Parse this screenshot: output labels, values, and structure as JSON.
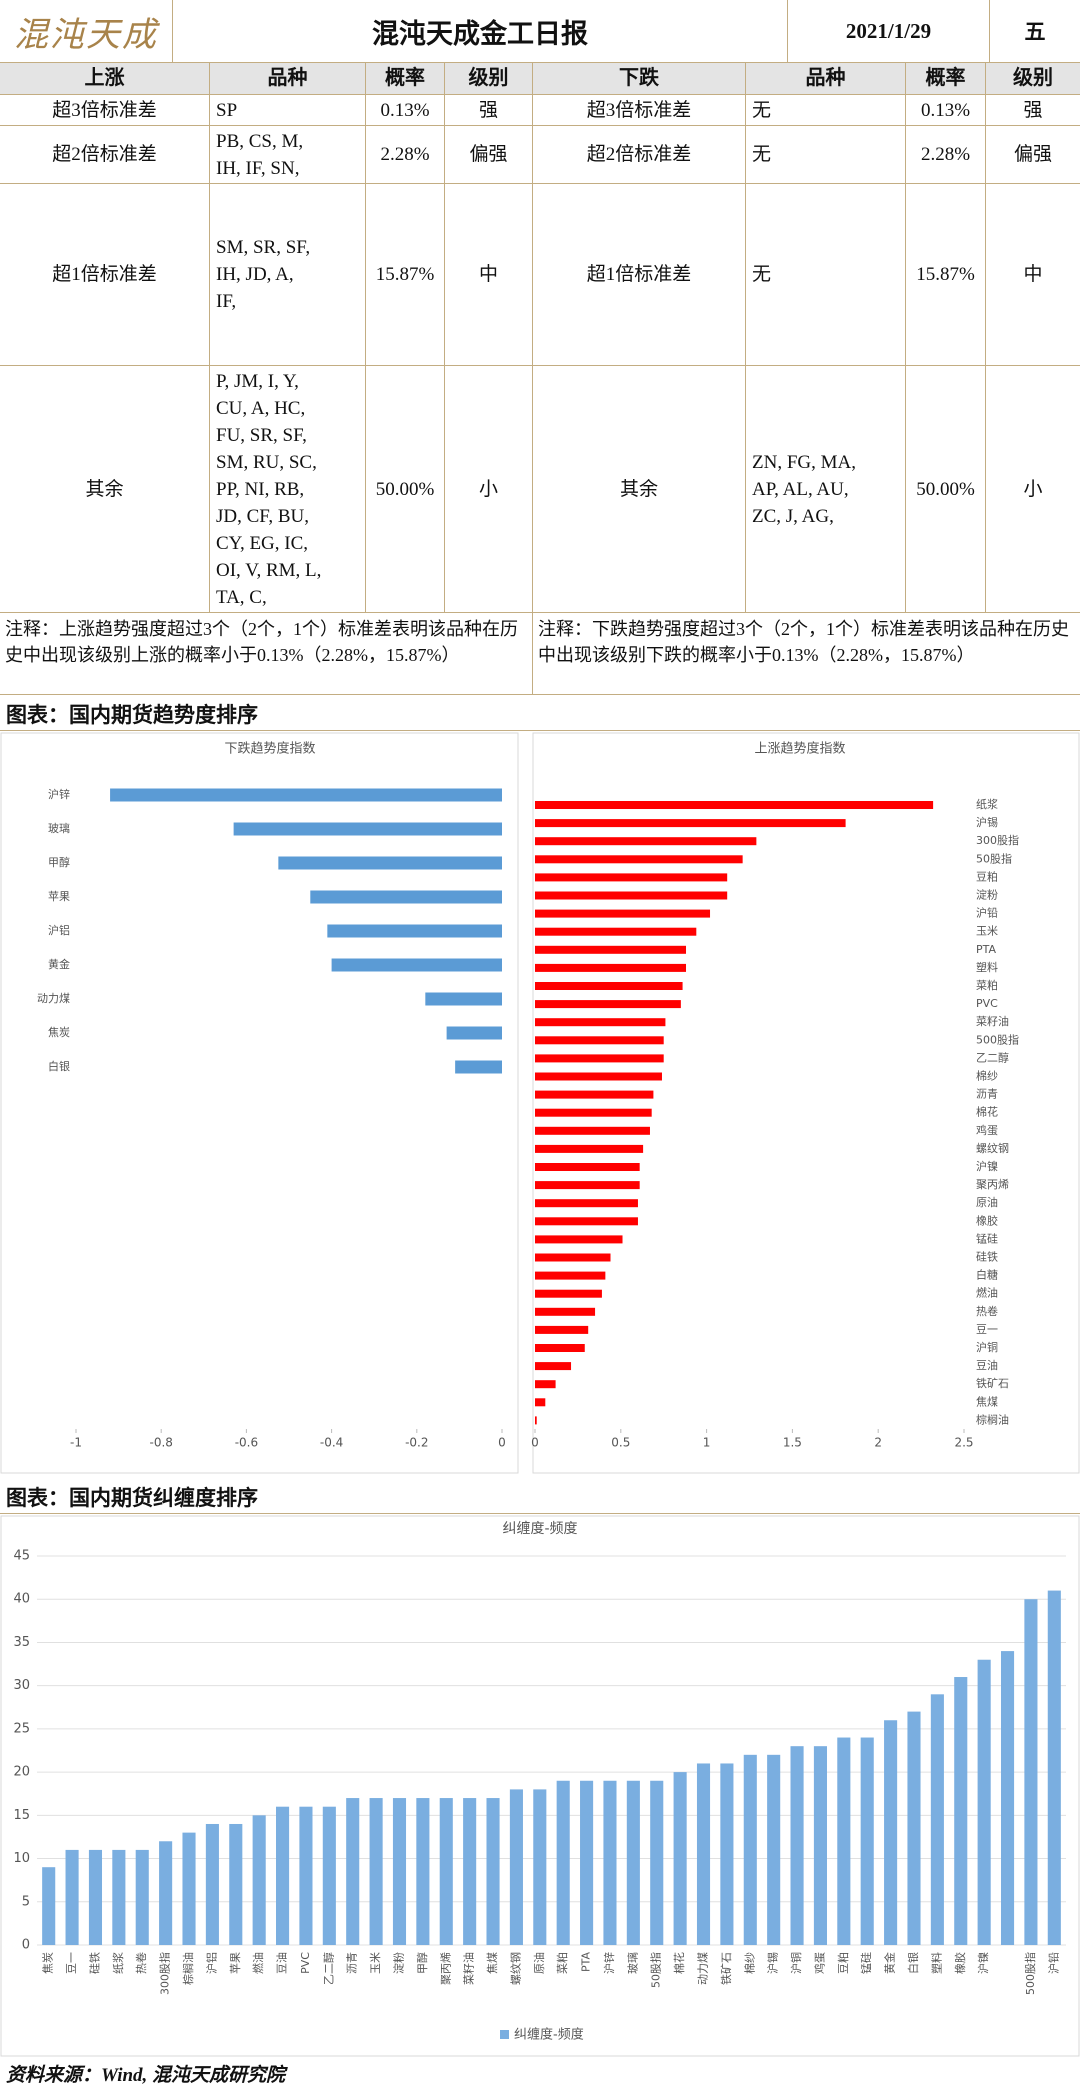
{
  "header": {
    "logo": "混沌天成",
    "title": "混沌天成金工日报",
    "date": "2021/1/29",
    "weekday": "五"
  },
  "table": {
    "headers": [
      "上涨",
      "品种",
      "概率",
      "级别",
      "下跌",
      "品种",
      "概率",
      "级别"
    ],
    "rows": [
      [
        "超3倍标准差",
        [
          "SP"
        ],
        "0.13%",
        "强",
        "超3倍标准差",
        [
          "无"
        ],
        "0.13%",
        "强"
      ],
      [
        "超2倍标准差",
        [
          "PB, CS, M,",
          "IH, IF, SN,"
        ],
        "2.28%",
        "偏强",
        "超2倍标准差",
        [
          "无"
        ],
        "2.28%",
        "偏强"
      ],
      [
        "超1倍标准差",
        [
          "SM, SR, SF,",
          "IH, JD, A,",
          "IF,"
        ],
        "15.87%",
        "中",
        "超1倍标准差",
        [
          "无"
        ],
        "15.87%",
        "中"
      ],
      [
        "其余",
        [
          "P, JM, I, Y,",
          "CU, A, HC,",
          "FU, SR, SF,",
          "SM, RU, SC,",
          "PP, NI, RB,",
          "JD, CF, BU,",
          "CY, EG, IC,",
          "OI, V, RM, L,",
          "TA, C,"
        ],
        "50.00%",
        "小",
        "其余",
        [
          "ZN, FG, MA,",
          "AP, AL, AU,",
          "ZC, J, AG,"
        ],
        "50.00%",
        "小"
      ]
    ]
  },
  "notes": [
    "注释：上涨趋势强度超过3个（2个，1个）标准差表明该品种在历史中出现该级别上涨的概率小于0.13%（2.28%，15.87%）",
    "注释：下跌趋势强度超过3个（2个，1个）标准差表明该品种在历史中出现该级别下跌的概率小于0.13%（2.28%，15.87%）"
  ],
  "sections": [
    "图表：国内期货趋势度排序",
    "图表：国内期货纠缠度排序"
  ],
  "chart_data": [
    {
      "type": "hbar",
      "title": "下跌趋势度指数",
      "categories": [
        "沪锌",
        "玻璃",
        "甲醇",
        "苹果",
        "沪铝",
        "黄金",
        "动力煤",
        "焦炭",
        "白银"
      ],
      "values": [
        -0.92,
        -0.63,
        -0.525,
        -0.45,
        -0.41,
        -0.4,
        -0.18,
        -0.13,
        -0.11
      ],
      "color": "#5b9bd5",
      "xlim": [
        -1,
        0
      ],
      "xticks": [
        -1,
        -0.8,
        -0.6,
        -0.4,
        -0.2,
        0
      ]
    },
    {
      "type": "hbar",
      "title": "上涨趋势度指数",
      "categories": [
        "纸浆",
        "沪锡",
        "300股指",
        "50股指",
        "豆粕",
        "淀粉",
        "沪铅",
        "玉米",
        "PTA",
        "塑料",
        "菜粕",
        "PVC",
        "菜籽油",
        "500股指",
        "乙二醇",
        "棉纱",
        "沥青",
        "棉花",
        "鸡蛋",
        "螺纹钢",
        "沪镍",
        "聚丙烯",
        "原油",
        "橡胶",
        "锰硅",
        "硅铁",
        "白糖",
        "燃油",
        "热卷",
        "豆一",
        "沪铜",
        "豆油",
        "铁矿石",
        "焦煤",
        "棕榈油"
      ],
      "values": [
        2.32,
        1.81,
        1.29,
        1.21,
        1.12,
        1.12,
        1.02,
        0.94,
        0.88,
        0.88,
        0.86,
        0.85,
        0.76,
        0.75,
        0.75,
        0.74,
        0.69,
        0.68,
        0.67,
        0.63,
        0.61,
        0.61,
        0.6,
        0.6,
        0.51,
        0.44,
        0.41,
        0.39,
        0.35,
        0.31,
        0.29,
        0.21,
        0.12,
        0.06,
        0.01
      ],
      "color": "#ff0000",
      "xlim": [
        0,
        2.5
      ],
      "xticks": [
        0,
        0.5,
        1,
        1.5,
        2,
        2.5
      ]
    },
    {
      "type": "bar",
      "title": "纠缠度-频度",
      "categories": [
        "焦炭",
        "豆一",
        "硅铁",
        "纸浆",
        "热卷",
        "300股指",
        "棕榈油",
        "沪铝",
        "苹果",
        "燃油",
        "豆油",
        "PVC",
        "乙二醇",
        "沥青",
        "玉米",
        "淀粉",
        "甲醇",
        "聚丙烯",
        "菜籽油",
        "焦煤",
        "螺纹钢",
        "原油",
        "菜粕",
        "PTA",
        "沪锌",
        "玻璃",
        "50股指",
        "棉花",
        "动力煤",
        "铁矿石",
        "棉纱",
        "沪锡",
        "沪铜",
        "鸡蛋",
        "豆粕",
        "锰硅",
        "黄金",
        "白银",
        "塑料",
        "橡胶",
        "沪镍",
        null,
        "500股指",
        "沪铅"
      ],
      "series": [
        {
          "name": "纠缠度-频度",
          "color": "#7aaee0",
          "values": [
            9,
            11,
            11,
            11,
            11,
            12,
            13,
            14,
            14,
            15,
            16,
            16,
            16,
            17,
            17,
            17,
            17,
            17,
            17,
            17,
            18,
            18,
            19,
            19,
            19,
            19,
            19,
            20,
            21,
            21,
            22,
            22,
            23,
            23,
            24,
            24,
            26,
            27,
            29,
            31,
            33,
            34,
            40,
            41
          ]
        }
      ],
      "ylim": [
        0,
        45
      ],
      "yticks": [
        0,
        5,
        10,
        15,
        20,
        25,
        30,
        35,
        40,
        45
      ],
      "grid": true
    }
  ],
  "footer": "资料来源：Wind, 混沌天成研究院"
}
